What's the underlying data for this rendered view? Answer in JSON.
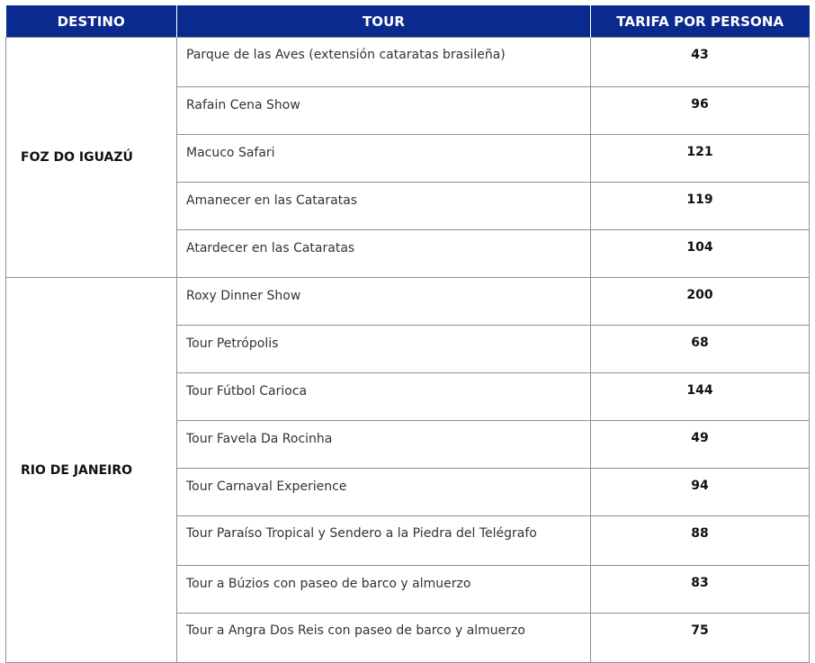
{
  "table": {
    "headers": [
      "DESTINO",
      "TOUR",
      "TARIFA POR PERSONA"
    ],
    "groups": [
      {
        "destination": "FOZ DO IGUAZÚ",
        "rows": [
          {
            "tour": "Parque de las Aves (extensión cataratas brasileña)",
            "rate": "43"
          },
          {
            "tour": "Rafain Cena Show",
            "rate": "96"
          },
          {
            "tour": "Macuco Safari",
            "rate": "121"
          },
          {
            "tour": "Amanecer en las Cataratas",
            "rate": "119"
          },
          {
            "tour": "Atardecer en las Cataratas",
            "rate": "104"
          }
        ]
      },
      {
        "destination": "RIO DE JANEIRO",
        "rows": [
          {
            "tour": "Roxy Dinner Show",
            "rate": "200"
          },
          {
            "tour": "Tour Petrópolis",
            "rate": "68"
          },
          {
            "tour": "Tour Fútbol Carioca",
            "rate": "144"
          },
          {
            "tour": "Tour Favela Da Rocinha",
            "rate": "49"
          },
          {
            "tour": "Tour Carnaval Experience",
            "rate": "94"
          },
          {
            "tour": "Tour Paraíso Tropical y Sendero a la Piedra del Telégrafo",
            "rate": "88"
          },
          {
            "tour": "Tour a Búzios con paseo de barco y almuerzo",
            "rate": "83"
          },
          {
            "tour": "Tour a Angra Dos Reis con paseo de barco y almuerzo",
            "rate": "75"
          }
        ]
      }
    ]
  },
  "colors": {
    "header_bg": "#0b2a8f",
    "header_text": "#ffffff",
    "border": "#8f8f8f"
  }
}
